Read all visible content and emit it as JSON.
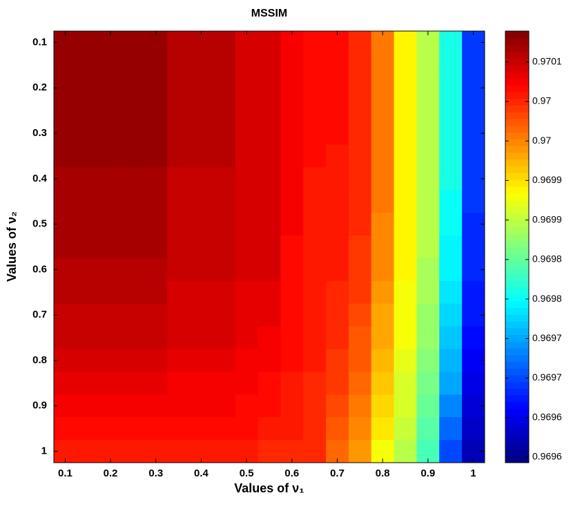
{
  "chart_data": {
    "type": "heatmap",
    "title": "MSSIM",
    "xlabel": "Values of ν₁",
    "ylabel": "Values of ν₂",
    "x": [
      0.1,
      0.15,
      0.2,
      0.25,
      0.3,
      0.35,
      0.4,
      0.45,
      0.5,
      0.55,
      0.6,
      0.65,
      0.7,
      0.75,
      0.8,
      0.85,
      0.9,
      0.95,
      1
    ],
    "y": [
      0.1,
      0.15,
      0.2,
      0.25,
      0.3,
      0.35,
      0.4,
      0.45,
      0.5,
      0.55,
      0.6,
      0.65,
      0.7,
      0.75,
      0.8,
      0.85,
      0.9,
      0.95,
      1
    ],
    "z": [
      [
        0.970123,
        0.970123,
        0.970123,
        0.970123,
        0.970123,
        0.970106,
        0.970106,
        0.970106,
        0.970095,
        0.970095,
        0.970073,
        0.970063,
        0.970063,
        0.970052,
        0.970008,
        0.969942,
        0.969899,
        0.969811,
        0.969691
      ],
      [
        0.970123,
        0.970123,
        0.970123,
        0.970123,
        0.970123,
        0.970106,
        0.970106,
        0.970106,
        0.970095,
        0.970095,
        0.970073,
        0.970063,
        0.970063,
        0.970052,
        0.970008,
        0.969942,
        0.969899,
        0.969811,
        0.969691
      ],
      [
        0.970123,
        0.970123,
        0.970123,
        0.970123,
        0.970123,
        0.970106,
        0.970106,
        0.970106,
        0.970095,
        0.970095,
        0.970073,
        0.970063,
        0.970063,
        0.970052,
        0.970008,
        0.969942,
        0.969899,
        0.969811,
        0.969691
      ],
      [
        0.970123,
        0.970123,
        0.970123,
        0.970123,
        0.970123,
        0.970106,
        0.970106,
        0.970106,
        0.970095,
        0.970095,
        0.970073,
        0.970063,
        0.970063,
        0.970052,
        0.970008,
        0.969942,
        0.969899,
        0.96981,
        0.969691
      ],
      [
        0.970122,
        0.970122,
        0.970122,
        0.970122,
        0.970122,
        0.970105,
        0.970105,
        0.970105,
        0.970095,
        0.970095,
        0.970073,
        0.970063,
        0.970063,
        0.970051,
        0.970007,
        0.969942,
        0.969898,
        0.96981,
        0.96969
      ],
      [
        0.970122,
        0.970122,
        0.970122,
        0.970122,
        0.970122,
        0.970105,
        0.970105,
        0.970105,
        0.970094,
        0.970094,
        0.970073,
        0.970063,
        0.970062,
        0.970051,
        0.970006,
        0.969941,
        0.969898,
        0.969809,
        0.96969
      ],
      [
        0.970121,
        0.970121,
        0.970121,
        0.970121,
        0.970121,
        0.970104,
        0.970104,
        0.970104,
        0.970094,
        0.970093,
        0.970072,
        0.970062,
        0.970061,
        0.97005,
        0.970005,
        0.96994,
        0.969897,
        0.969807,
        0.969688
      ],
      [
        0.970119,
        0.970119,
        0.970119,
        0.970119,
        0.970119,
        0.970103,
        0.970103,
        0.970103,
        0.970093,
        0.970092,
        0.970072,
        0.970062,
        0.97006,
        0.970048,
        0.970003,
        0.969939,
        0.969895,
        0.969805,
        0.969687
      ],
      [
        0.970117,
        0.970117,
        0.970117,
        0.970117,
        0.970117,
        0.970102,
        0.970102,
        0.970102,
        0.970092,
        0.970091,
        0.970071,
        0.970061,
        0.970059,
        0.970046,
        0.970001,
        0.969938,
        0.969894,
        0.969801,
        0.969685
      ],
      [
        0.970115,
        0.970115,
        0.970115,
        0.970115,
        0.970115,
        0.9701,
        0.9701,
        0.9701,
        0.97009,
        0.97009,
        0.97007,
        0.970061,
        0.970058,
        0.970044,
        0.969999,
        0.969937,
        0.969892,
        0.969797,
        0.969682
      ],
      [
        0.970112,
        0.970112,
        0.970112,
        0.970112,
        0.970112,
        0.970098,
        0.970098,
        0.970098,
        0.970089,
        0.970088,
        0.970069,
        0.97006,
        0.970055,
        0.970041,
        0.969995,
        0.969935,
        0.969889,
        0.969792,
        0.969679
      ],
      [
        0.970108,
        0.970108,
        0.970108,
        0.970108,
        0.970108,
        0.970095,
        0.970095,
        0.970095,
        0.970086,
        0.970085,
        0.970068,
        0.970059,
        0.970053,
        0.970037,
        0.969991,
        0.969932,
        0.969885,
        0.969786,
        0.969675
      ],
      [
        0.970104,
        0.970104,
        0.970104,
        0.970104,
        0.970104,
        0.970092,
        0.970092,
        0.970092,
        0.970084,
        0.970082,
        0.970067,
        0.970058,
        0.97005,
        0.970033,
        0.969985,
        0.969929,
        0.969881,
        0.969779,
        0.96967
      ],
      [
        0.970098,
        0.970098,
        0.970098,
        0.970098,
        0.970098,
        0.970088,
        0.970088,
        0.970088,
        0.970081,
        0.970079,
        0.970065,
        0.970057,
        0.970046,
        0.970027,
        0.969979,
        0.969926,
        0.969876,
        0.96977,
        0.969664
      ],
      [
        0.970092,
        0.970092,
        0.970092,
        0.970092,
        0.970092,
        0.970083,
        0.970083,
        0.970083,
        0.970077,
        0.970075,
        0.970063,
        0.970055,
        0.970042,
        0.970021,
        0.969972,
        0.969922,
        0.969871,
        0.96976,
        0.969658
      ],
      [
        0.970085,
        0.970085,
        0.970085,
        0.970085,
        0.970085,
        0.970078,
        0.970078,
        0.970078,
        0.970073,
        0.97007,
        0.970061,
        0.970053,
        0.970037,
        0.970014,
        0.969964,
        0.969917,
        0.969864,
        0.969748,
        0.96965
      ],
      [
        0.970077,
        0.970077,
        0.970077,
        0.970077,
        0.970077,
        0.970072,
        0.970072,
        0.970072,
        0.970068,
        0.970065,
        0.970058,
        0.970051,
        0.970032,
        0.970006,
        0.969955,
        0.969912,
        0.969857,
        0.969735,
        0.969641
      ],
      [
        0.970067,
        0.970067,
        0.970067,
        0.970067,
        0.970067,
        0.970065,
        0.970065,
        0.970065,
        0.970063,
        0.970059,
        0.970055,
        0.970049,
        0.970026,
        0.969996,
        0.969944,
        0.969906,
        0.969848,
        0.969719,
        0.969631
      ],
      [
        0.970057,
        0.970057,
        0.970057,
        0.970057,
        0.970057,
        0.970057,
        0.970057,
        0.970057,
        0.970057,
        0.970052,
        0.970052,
        0.970046,
        0.970019,
        0.969986,
        0.969932,
        0.969899,
        0.969839,
        0.969702,
        0.96962
      ]
    ],
    "xlim": [
      0.075,
      1.025
    ],
    "xticks": [
      0.1,
      0.2,
      0.3,
      0.4,
      0.5,
      0.6,
      0.7,
      0.8,
      0.9,
      1
    ],
    "ylim": [
      1.025,
      0.075
    ],
    "yticks": [
      0.1,
      0.2,
      0.3,
      0.4,
      0.5,
      0.6,
      0.7,
      0.8,
      0.9,
      1
    ],
    "colormap": "jet",
    "clim": [
      0.969593,
      0.970139
    ],
    "cticks": [
      0.9696,
      {
        "value": 0.96965,
        "label": "0.9696"
      },
      0.9697,
      {
        "value": 0.96975,
        "label": "0.9697"
      },
      0.9698,
      {
        "value": 0.96985,
        "label": "0.9698"
      },
      0.9699,
      {
        "value": 0.96995,
        "label": "0.9699"
      },
      0.97,
      {
        "value": 0.97005,
        "label": "0.97"
      },
      0.9701
    ]
  }
}
